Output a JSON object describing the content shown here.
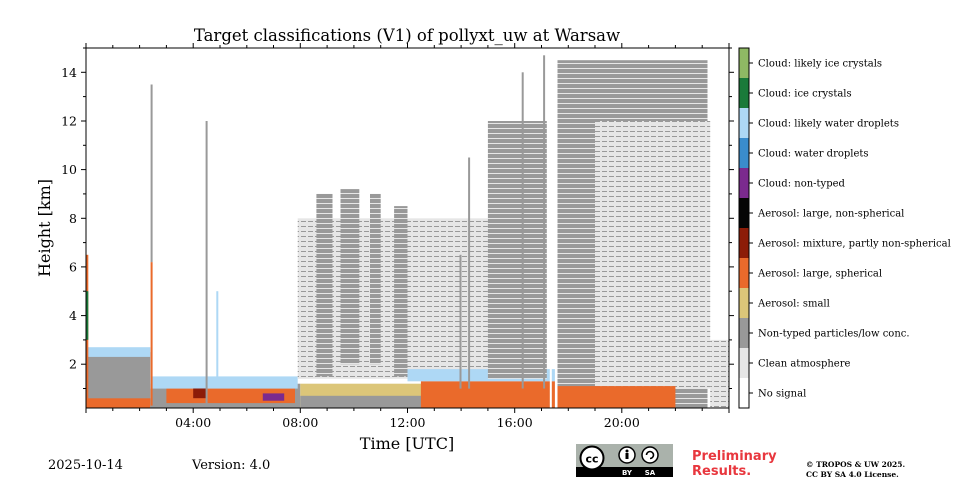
{
  "chart_data": {
    "type": "heatmap",
    "title": "Target classifications (V1) of pollyxt_uw at Warsaw",
    "xlabel": "Time [UTC]",
    "ylabel": "Height [km]",
    "x_unit": "hours UTC",
    "xlim": [
      0,
      24
    ],
    "ylim": [
      0.2,
      15
    ],
    "x_ticks": [
      {
        "value": 4,
        "label": "04:00"
      },
      {
        "value": 8,
        "label": "08:00"
      },
      {
        "value": 12,
        "label": "12:00"
      },
      {
        "value": 16,
        "label": "16:00"
      },
      {
        "value": 20,
        "label": "20:00"
      }
    ],
    "y_ticks": [
      {
        "value": 2,
        "label": "2"
      },
      {
        "value": 4,
        "label": "4"
      },
      {
        "value": 6,
        "label": "6"
      },
      {
        "value": 8,
        "label": "8"
      },
      {
        "value": 10,
        "label": "10"
      },
      {
        "value": 12,
        "label": "12"
      },
      {
        "value": 14,
        "label": "14"
      }
    ],
    "legend": {
      "placement": "right colorbar",
      "classes": [
        {
          "label": "Cloud: likely ice crystals",
          "color": "#8fb964"
        },
        {
          "label": "Cloud: ice crystals",
          "color": "#1a7a3a"
        },
        {
          "label": "Cloud: likely water droplets",
          "color": "#aed8f5"
        },
        {
          "label": "Cloud: water droplets",
          "color": "#3a8ccc"
        },
        {
          "label": "Cloud: non-typed",
          "color": "#7b2a8e"
        },
        {
          "label": "Aerosol: large, non-spherical",
          "color": "#050505"
        },
        {
          "label": "Aerosol: mixture, partly non-spherical",
          "color": "#8c1c08"
        },
        {
          "label": "Aerosol: large, spherical",
          "color": "#ea6a2b"
        },
        {
          "label": "Aerosol: small",
          "color": "#dcc679"
        },
        {
          "label": "Non-typed particles/low conc.",
          "color": "#999999"
        },
        {
          "label": "Clean atmosphere",
          "color": "#e6e6e6"
        },
        {
          "label": "No signal",
          "color": "#ffffff"
        }
      ]
    },
    "regions": [
      {
        "class": "Non-typed particles/low conc.",
        "x": [
          0.0,
          2.4
        ],
        "y": [
          0.2,
          2.5
        ]
      },
      {
        "class": "Aerosol: large, spherical",
        "x": [
          0.0,
          2.4
        ],
        "y": [
          0.2,
          0.6
        ]
      },
      {
        "class": "Cloud: likely water droplets",
        "x": [
          0.0,
          2.4
        ],
        "y": [
          2.3,
          2.7
        ]
      },
      {
        "class": "Non-typed particles/low conc.",
        "x": [
          2.4,
          8.0
        ],
        "y": [
          0.2,
          1.2
        ]
      },
      {
        "class": "Aerosol: large, spherical",
        "x": [
          3.0,
          7.8
        ],
        "y": [
          0.4,
          1.0
        ]
      },
      {
        "class": "Cloud: likely water droplets",
        "x": [
          2.4,
          7.9
        ],
        "y": [
          1.0,
          1.5
        ]
      },
      {
        "class": "Aerosol: mixture, partly non-spherical",
        "x": [
          4.0,
          4.5
        ],
        "y": [
          0.6,
          1.0
        ]
      },
      {
        "class": "Cloud: non-typed",
        "x": [
          6.6,
          7.4
        ],
        "y": [
          0.5,
          0.8
        ]
      },
      {
        "class": "Clean atmosphere",
        "x": [
          7.9,
          15.0
        ],
        "y": [
          1.4,
          8.0
        ]
      },
      {
        "class": "Non-typed particles/low conc.",
        "x": [
          8.6,
          9.2
        ],
        "y": [
          1.5,
          9.0
        ]
      },
      {
        "class": "Non-typed particles/low conc.",
        "x": [
          9.5,
          10.2
        ],
        "y": [
          2.0,
          9.2
        ]
      },
      {
        "class": "Non-typed particles/low conc.",
        "x": [
          10.6,
          11.0
        ],
        "y": [
          2.0,
          9.0
        ]
      },
      {
        "class": "Non-typed particles/low conc.",
        "x": [
          11.5,
          12.0
        ],
        "y": [
          1.5,
          8.5
        ]
      },
      {
        "class": "Aerosol: small",
        "x": [
          8.0,
          16.0
        ],
        "y": [
          0.2,
          1.2
        ]
      },
      {
        "class": "Non-typed particles/low conc.",
        "x": [
          8.0,
          15.0
        ],
        "y": [
          0.2,
          0.7
        ]
      },
      {
        "class": "Aerosol: large, spherical",
        "x": [
          12.5,
          17.5
        ],
        "y": [
          0.2,
          1.3
        ]
      },
      {
        "class": "Cloud: likely water droplets",
        "x": [
          12.0,
          17.5
        ],
        "y": [
          1.3,
          1.8
        ]
      },
      {
        "class": "Non-typed particles/low conc.",
        "x": [
          15.0,
          17.2
        ],
        "y": [
          1.4,
          12.0
        ]
      },
      {
        "class": "Non-typed particles/low conc.",
        "x": [
          17.6,
          23.2
        ],
        "y": [
          0.2,
          14.5
        ]
      },
      {
        "class": "Clean atmosphere",
        "x": [
          19.0,
          23.3
        ],
        "y": [
          1.0,
          12.0
        ]
      },
      {
        "class": "Aerosol: large, spherical",
        "x": [
          17.6,
          22.0
        ],
        "y": [
          0.2,
          1.1
        ]
      },
      {
        "class": "Clean atmosphere",
        "x": [
          23.3,
          24.0
        ],
        "y": [
          0.2,
          3.0
        ]
      }
    ]
  },
  "footer": {
    "date": "2025-10-14",
    "version": "Version: 4.0",
    "preliminary_line1": "Preliminary",
    "preliminary_line2": "Results.",
    "copyright_line1": "© TROPOS & UW 2025.",
    "copyright_line2": "CC BY SA 4.0 License.",
    "cc_label": "cc",
    "by_label": "BY",
    "sa_label": "SA"
  }
}
